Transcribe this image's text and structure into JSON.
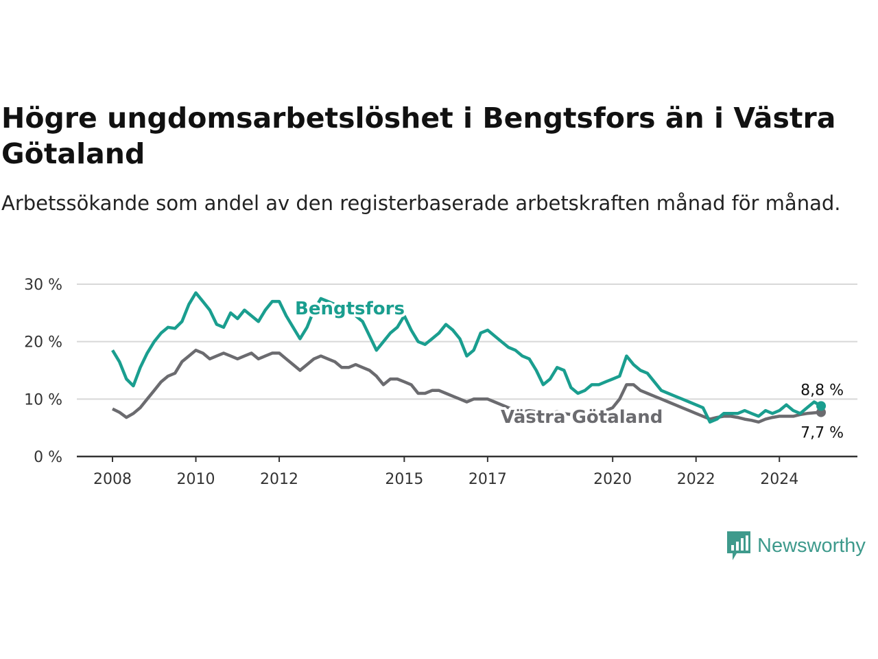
{
  "chart_data": {
    "type": "line",
    "title": "Högre ungdomsarbetslöshet i Bengtsfors än i Västra Götaland",
    "subtitle": "Arbetssökande som andel av den registerbaserade arbetskraften månad för månad.",
    "x_ticks": [
      "2008",
      "2010",
      "2012",
      "2015",
      "2017",
      "2020",
      "2022",
      "2024"
    ],
    "y_ticks": [
      "0 %",
      "10 %",
      "20 %",
      "30 %"
    ],
    "ylim": [
      0,
      30
    ],
    "grid": true,
    "colors": {
      "Bengtsfors": "#1a9e8f",
      "Västra Götaland": "#6b6b6f"
    },
    "series": [
      {
        "name": "Bengtsfors",
        "end_label": "8,8 %",
        "points": [
          [
            "2008-01",
            18.5
          ],
          [
            "2008-03",
            16.5
          ],
          [
            "2008-05",
            13.5
          ],
          [
            "2008-07",
            12.3
          ],
          [
            "2008-09",
            15.5
          ],
          [
            "2008-11",
            18
          ],
          [
            "2009-01",
            20
          ],
          [
            "2009-03",
            21.5
          ],
          [
            "2009-05",
            22.5
          ],
          [
            "2009-07",
            22.3
          ],
          [
            "2009-09",
            23.5
          ],
          [
            "2009-11",
            26.5
          ],
          [
            "2010-01",
            28.5
          ],
          [
            "2010-03",
            27
          ],
          [
            "2010-05",
            25.5
          ],
          [
            "2010-07",
            23
          ],
          [
            "2010-09",
            22.5
          ],
          [
            "2010-11",
            25
          ],
          [
            "2011-01",
            24
          ],
          [
            "2011-03",
            25.5
          ],
          [
            "2011-05",
            24.5
          ],
          [
            "2011-07",
            23.5
          ],
          [
            "2011-09",
            25.5
          ],
          [
            "2011-11",
            27
          ],
          [
            "2012-01",
            27
          ],
          [
            "2012-03",
            24.5
          ],
          [
            "2012-05",
            22.5
          ],
          [
            "2012-07",
            20.5
          ],
          [
            "2012-09",
            22.5
          ],
          [
            "2012-11",
            25.5
          ],
          [
            "2013-01",
            27.5
          ],
          [
            "2013-03",
            27
          ],
          [
            "2013-05",
            26.5
          ],
          [
            "2013-07",
            25.5
          ],
          [
            "2013-09",
            25.5
          ],
          [
            "2013-11",
            24.5
          ],
          [
            "2014-01",
            23.5
          ],
          [
            "2014-03",
            21
          ],
          [
            "2014-05",
            18.5
          ],
          [
            "2014-07",
            20
          ],
          [
            "2014-09",
            21.5
          ],
          [
            "2014-11",
            22.5
          ],
          [
            "2015-01",
            24.5
          ],
          [
            "2015-03",
            22
          ],
          [
            "2015-05",
            20
          ],
          [
            "2015-07",
            19.5
          ],
          [
            "2015-09",
            20.5
          ],
          [
            "2015-11",
            21.5
          ],
          [
            "2016-01",
            23
          ],
          [
            "2016-03",
            22
          ],
          [
            "2016-05",
            20.5
          ],
          [
            "2016-07",
            17.5
          ],
          [
            "2016-09",
            18.5
          ],
          [
            "2016-11",
            21.5
          ],
          [
            "2017-01",
            22
          ],
          [
            "2017-03",
            21
          ],
          [
            "2017-05",
            20
          ],
          [
            "2017-07",
            19
          ],
          [
            "2017-09",
            18.5
          ],
          [
            "2017-11",
            17.5
          ],
          [
            "2018-01",
            17
          ],
          [
            "2018-03",
            15
          ],
          [
            "2018-05",
            12.5
          ],
          [
            "2018-07",
            13.5
          ],
          [
            "2018-09",
            15.5
          ],
          [
            "2018-11",
            15
          ],
          [
            "2019-01",
            12
          ],
          [
            "2019-03",
            11
          ],
          [
            "2019-05",
            11.5
          ],
          [
            "2019-07",
            12.5
          ],
          [
            "2019-09",
            12.5
          ],
          [
            "2019-11",
            13
          ],
          [
            "2020-01",
            13.5
          ],
          [
            "2020-03",
            14
          ],
          [
            "2020-05",
            17.5
          ],
          [
            "2020-07",
            16
          ],
          [
            "2020-09",
            15
          ],
          [
            "2020-11",
            14.5
          ],
          [
            "2021-01",
            13
          ],
          [
            "2021-03",
            11.5
          ],
          [
            "2021-05",
            11
          ],
          [
            "2021-07",
            10.5
          ],
          [
            "2021-09",
            10
          ],
          [
            "2021-11",
            9.5
          ],
          [
            "2022-01",
            9
          ],
          [
            "2022-03",
            8.5
          ],
          [
            "2022-05",
            6
          ],
          [
            "2022-07",
            6.5
          ],
          [
            "2022-09",
            7.5
          ],
          [
            "2022-11",
            7.5
          ],
          [
            "2023-01",
            7.5
          ],
          [
            "2023-03",
            8
          ],
          [
            "2023-05",
            7.5
          ],
          [
            "2023-07",
            7
          ],
          [
            "2023-09",
            8
          ],
          [
            "2023-11",
            7.5
          ],
          [
            "2024-01",
            8
          ],
          [
            "2024-03",
            9
          ],
          [
            "2024-05",
            8
          ],
          [
            "2024-07",
            7.5
          ],
          [
            "2024-09",
            8.5
          ],
          [
            "2024-11",
            9.5
          ],
          [
            "2025-01",
            8.8
          ]
        ]
      },
      {
        "name": "Västra Götaland",
        "end_label": "7,7 %",
        "points": [
          [
            "2008-01",
            8.3
          ],
          [
            "2008-03",
            7.7
          ],
          [
            "2008-05",
            6.8
          ],
          [
            "2008-07",
            7.5
          ],
          [
            "2008-09",
            8.5
          ],
          [
            "2008-11",
            10
          ],
          [
            "2009-01",
            11.5
          ],
          [
            "2009-03",
            13
          ],
          [
            "2009-05",
            14
          ],
          [
            "2009-07",
            14.5
          ],
          [
            "2009-09",
            16.5
          ],
          [
            "2009-11",
            17.5
          ],
          [
            "2010-01",
            18.5
          ],
          [
            "2010-03",
            18
          ],
          [
            "2010-05",
            17
          ],
          [
            "2010-07",
            17.5
          ],
          [
            "2010-09",
            18
          ],
          [
            "2010-11",
            17.5
          ],
          [
            "2011-01",
            17
          ],
          [
            "2011-03",
            17.5
          ],
          [
            "2011-05",
            18
          ],
          [
            "2011-07",
            17
          ],
          [
            "2011-09",
            17.5
          ],
          [
            "2011-11",
            18
          ],
          [
            "2012-01",
            18
          ],
          [
            "2012-03",
            17
          ],
          [
            "2012-05",
            16
          ],
          [
            "2012-07",
            15
          ],
          [
            "2012-09",
            16
          ],
          [
            "2012-11",
            17
          ],
          [
            "2013-01",
            17.5
          ],
          [
            "2013-03",
            17
          ],
          [
            "2013-05",
            16.5
          ],
          [
            "2013-07",
            15.5
          ],
          [
            "2013-09",
            15.5
          ],
          [
            "2013-11",
            16
          ],
          [
            "2014-01",
            15.5
          ],
          [
            "2014-03",
            15
          ],
          [
            "2014-05",
            14
          ],
          [
            "2014-07",
            12.5
          ],
          [
            "2014-09",
            13.5
          ],
          [
            "2014-11",
            13.5
          ],
          [
            "2015-01",
            13
          ],
          [
            "2015-03",
            12.5
          ],
          [
            "2015-05",
            11
          ],
          [
            "2015-07",
            11
          ],
          [
            "2015-09",
            11.5
          ],
          [
            "2015-11",
            11.5
          ],
          [
            "2016-01",
            11
          ],
          [
            "2016-03",
            10.5
          ],
          [
            "2016-05",
            10
          ],
          [
            "2016-07",
            9.5
          ],
          [
            "2016-09",
            10
          ],
          [
            "2016-11",
            10
          ],
          [
            "2017-01",
            10
          ],
          [
            "2017-03",
            9.5
          ],
          [
            "2017-05",
            9
          ],
          [
            "2017-07",
            8.5
          ],
          [
            "2017-09",
            8
          ],
          [
            "2017-11",
            7.8
          ],
          [
            "2018-01",
            8
          ],
          [
            "2018-03",
            7.8
          ],
          [
            "2018-05",
            7.5
          ],
          [
            "2018-07",
            7.5
          ],
          [
            "2018-09",
            7.8
          ],
          [
            "2018-11",
            7.5
          ],
          [
            "2019-01",
            7.3
          ],
          [
            "2019-03",
            7.3
          ],
          [
            "2019-05",
            7.5
          ],
          [
            "2019-07",
            7.6
          ],
          [
            "2019-09",
            7.8
          ],
          [
            "2019-11",
            8
          ],
          [
            "2020-01",
            8.5
          ],
          [
            "2020-03",
            10
          ],
          [
            "2020-05",
            12.5
          ],
          [
            "2020-07",
            12.5
          ],
          [
            "2020-09",
            11.5
          ],
          [
            "2020-11",
            11
          ],
          [
            "2021-01",
            10.5
          ],
          [
            "2021-03",
            10
          ],
          [
            "2021-05",
            9.5
          ],
          [
            "2021-07",
            9
          ],
          [
            "2021-09",
            8.5
          ],
          [
            "2021-11",
            8
          ],
          [
            "2022-01",
            7.5
          ],
          [
            "2022-03",
            7
          ],
          [
            "2022-05",
            6.5
          ],
          [
            "2022-07",
            6.8
          ],
          [
            "2022-09",
            7
          ],
          [
            "2022-11",
            7
          ],
          [
            "2023-01",
            6.8
          ],
          [
            "2023-03",
            6.5
          ],
          [
            "2023-05",
            6.3
          ],
          [
            "2023-07",
            6
          ],
          [
            "2023-09",
            6.5
          ],
          [
            "2023-11",
            6.8
          ],
          [
            "2024-01",
            7
          ],
          [
            "2024-03",
            7
          ],
          [
            "2024-05",
            7
          ],
          [
            "2024-07",
            7.3
          ],
          [
            "2024-09",
            7.5
          ],
          [
            "2024-11",
            7.6
          ],
          [
            "2025-01",
            7.7
          ]
        ]
      }
    ]
  },
  "branding": {
    "logo_text": "Newsworthy"
  }
}
